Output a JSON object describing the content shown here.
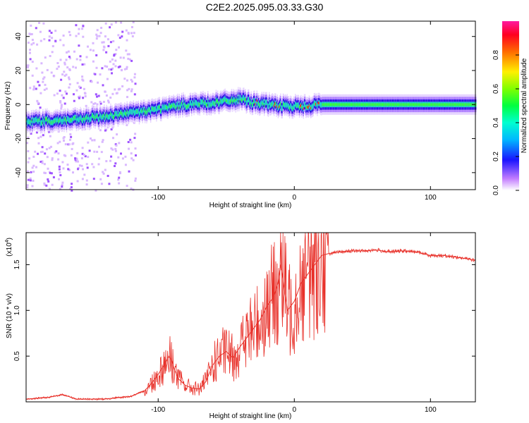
{
  "title": "C2E2.2025.095.03.33.G30",
  "chart_data": [
    {
      "type": "heatmap",
      "xlabel": "Height of straight line (km)",
      "ylabel": "Frequency (Hz)",
      "xlim": [
        -197,
        133
      ],
      "ylim": [
        -50,
        49
      ],
      "x_ticks": [
        -100,
        0,
        100
      ],
      "x_tick_labels": [
        "-100",
        "0",
        "100"
      ],
      "y_ticks": [
        -40,
        -20,
        0,
        20,
        40
      ],
      "y_tick_labels": [
        "-40",
        "-20",
        "0",
        "20",
        "40"
      ],
      "ridge": {
        "x": [
          -197,
          -160,
          -140,
          -110,
          -80,
          -60,
          -50,
          -40,
          -30,
          -20,
          -10,
          0,
          10,
          20,
          50,
          100,
          133
        ],
        "y": [
          -10,
          -9,
          -7,
          -4,
          0,
          1,
          2,
          3,
          1,
          0,
          -1,
          -1,
          -1,
          0,
          0,
          0,
          0
        ]
      },
      "colorbar": {
        "label": "Normalized spectral amplitude",
        "range": [
          0,
          1
        ],
        "ticks": [
          0.0,
          0.2,
          0.4,
          0.6,
          0.8
        ],
        "tick_labels": [
          "0.0",
          "0.2",
          "0.4",
          "0.6",
          "0.8"
        ]
      },
      "grid": false
    },
    {
      "type": "line",
      "xlabel": "Height of straight line (km)",
      "ylabel": "SNR (10 * v/v)",
      "multiplier_label": "(x10",
      "multiplier_exponent": "4",
      "xlim": [
        -197,
        133
      ],
      "ylim": [
        0,
        1.85
      ],
      "x_ticks": [
        -100,
        0,
        100
      ],
      "x_tick_labels": [
        "-100",
        "0",
        "100"
      ],
      "y_ticks": [
        0.5,
        1.0,
        1.5
      ],
      "y_tick_labels": [
        "0.5",
        "1.0",
        "1.5"
      ],
      "series": [
        {
          "color": "#e8312a",
          "x": [
            -197,
            -180,
            -170,
            -160,
            -140,
            -120,
            -110,
            -105,
            -100,
            -95,
            -92,
            -90,
            -88,
            -85,
            -80,
            -75,
            -70,
            -65,
            -60,
            -55,
            -50,
            -45,
            -40,
            -35,
            -30,
            -25,
            -20,
            -15,
            -12,
            -10,
            -5,
            0,
            5,
            10,
            15,
            20,
            25,
            30,
            40,
            50,
            60,
            70,
            80,
            90,
            100,
            110,
            120,
            133
          ],
          "y": [
            0.03,
            0.05,
            0.08,
            0.03,
            0.03,
            0.06,
            0.12,
            0.2,
            0.3,
            0.42,
            0.5,
            0.45,
            0.35,
            0.25,
            0.18,
            0.15,
            0.14,
            0.22,
            0.4,
            0.5,
            0.55,
            0.48,
            0.6,
            0.7,
            0.8,
            0.9,
            1.05,
            1.15,
            1.3,
            1.5,
            1.0,
            1.1,
            1.3,
            1.4,
            1.5,
            1.6,
            1.62,
            1.63,
            1.65,
            1.65,
            1.66,
            1.64,
            1.65,
            1.64,
            1.6,
            1.6,
            1.58,
            1.55
          ]
        }
      ],
      "grid": false
    }
  ]
}
